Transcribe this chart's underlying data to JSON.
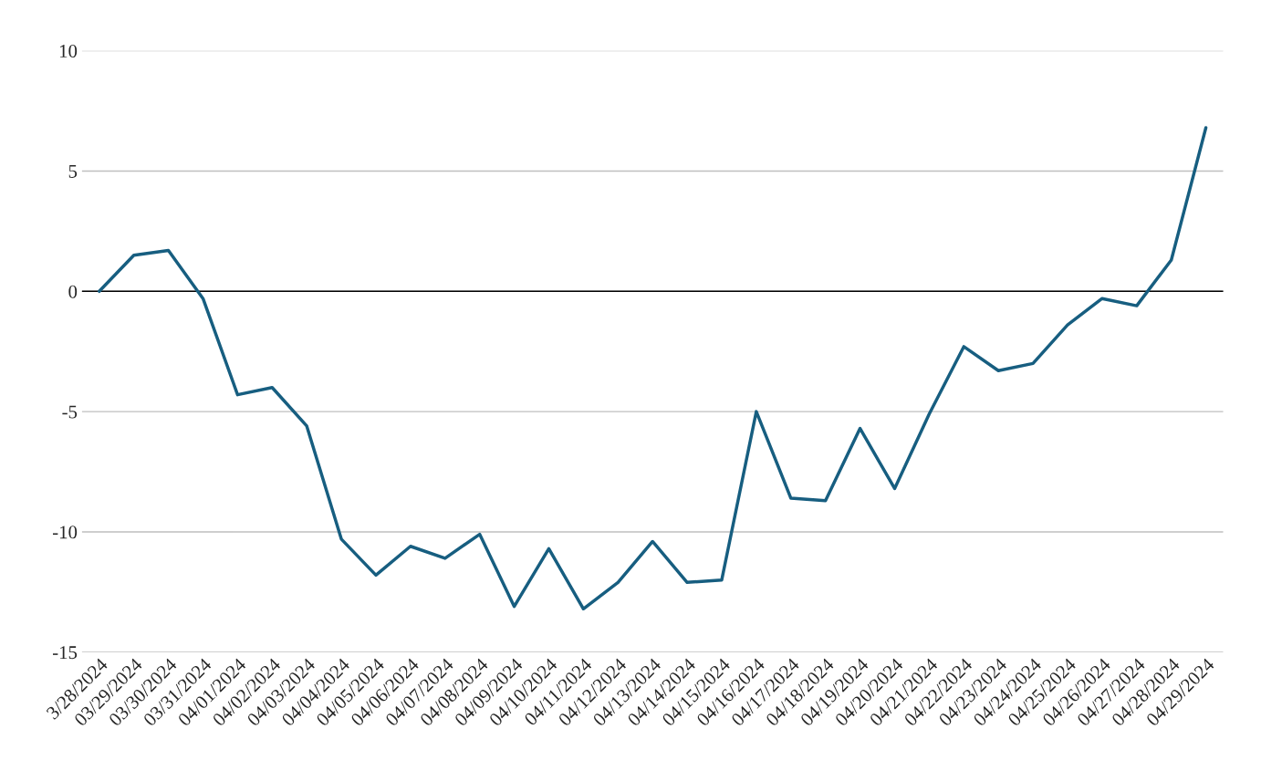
{
  "chart_data": {
    "type": "line",
    "categories": [
      "3/28/2024",
      "03/29/2024",
      "03/30/2024",
      "03/31/2024",
      "04/01/2024",
      "04/02/2024",
      "04/03/2024",
      "04/04/2024",
      "04/05/2024",
      "04/06/2024",
      "04/07/2024",
      "04/08/2024",
      "04/09/2024",
      "04/10/2024",
      "04/11/2024",
      "04/12/2024",
      "04/13/2024",
      "04/14/2024",
      "04/15/2024",
      "04/16/2024",
      "04/17/2024",
      "04/18/2024",
      "04/19/2024",
      "04/20/2024",
      "04/21/2024",
      "04/22/2024",
      "04/23/2024",
      "04/24/2024",
      "04/25/2024",
      "04/26/2024",
      "04/27/2024",
      "04/28/2024",
      "04/29/2024"
    ],
    "series": [
      {
        "color": "#175e80",
        "values": [
          0,
          1.5,
          1.7,
          -0.3,
          -4.3,
          -4.0,
          -5.6,
          -10.3,
          -11.8,
          -10.6,
          -11.1,
          -10.1,
          -13.1,
          -10.7,
          -13.2,
          -12.1,
          -10.4,
          -12.1,
          -12.0,
          -5.0,
          -8.6,
          -8.7,
          -5.7,
          -8.2,
          -5.1,
          -2.3,
          -3.3,
          -3.0,
          -1.4,
          -0.3,
          -0.6,
          1.3,
          6.8
        ]
      }
    ],
    "ylim": [
      -15,
      10
    ],
    "yticks": [
      -15,
      -10,
      -5,
      0,
      5,
      10
    ],
    "grid": "y",
    "marker": "none",
    "line_style": "solid",
    "ref_lines": [
      {
        "axis": "y",
        "value": 0,
        "color": "#000000"
      }
    ]
  }
}
